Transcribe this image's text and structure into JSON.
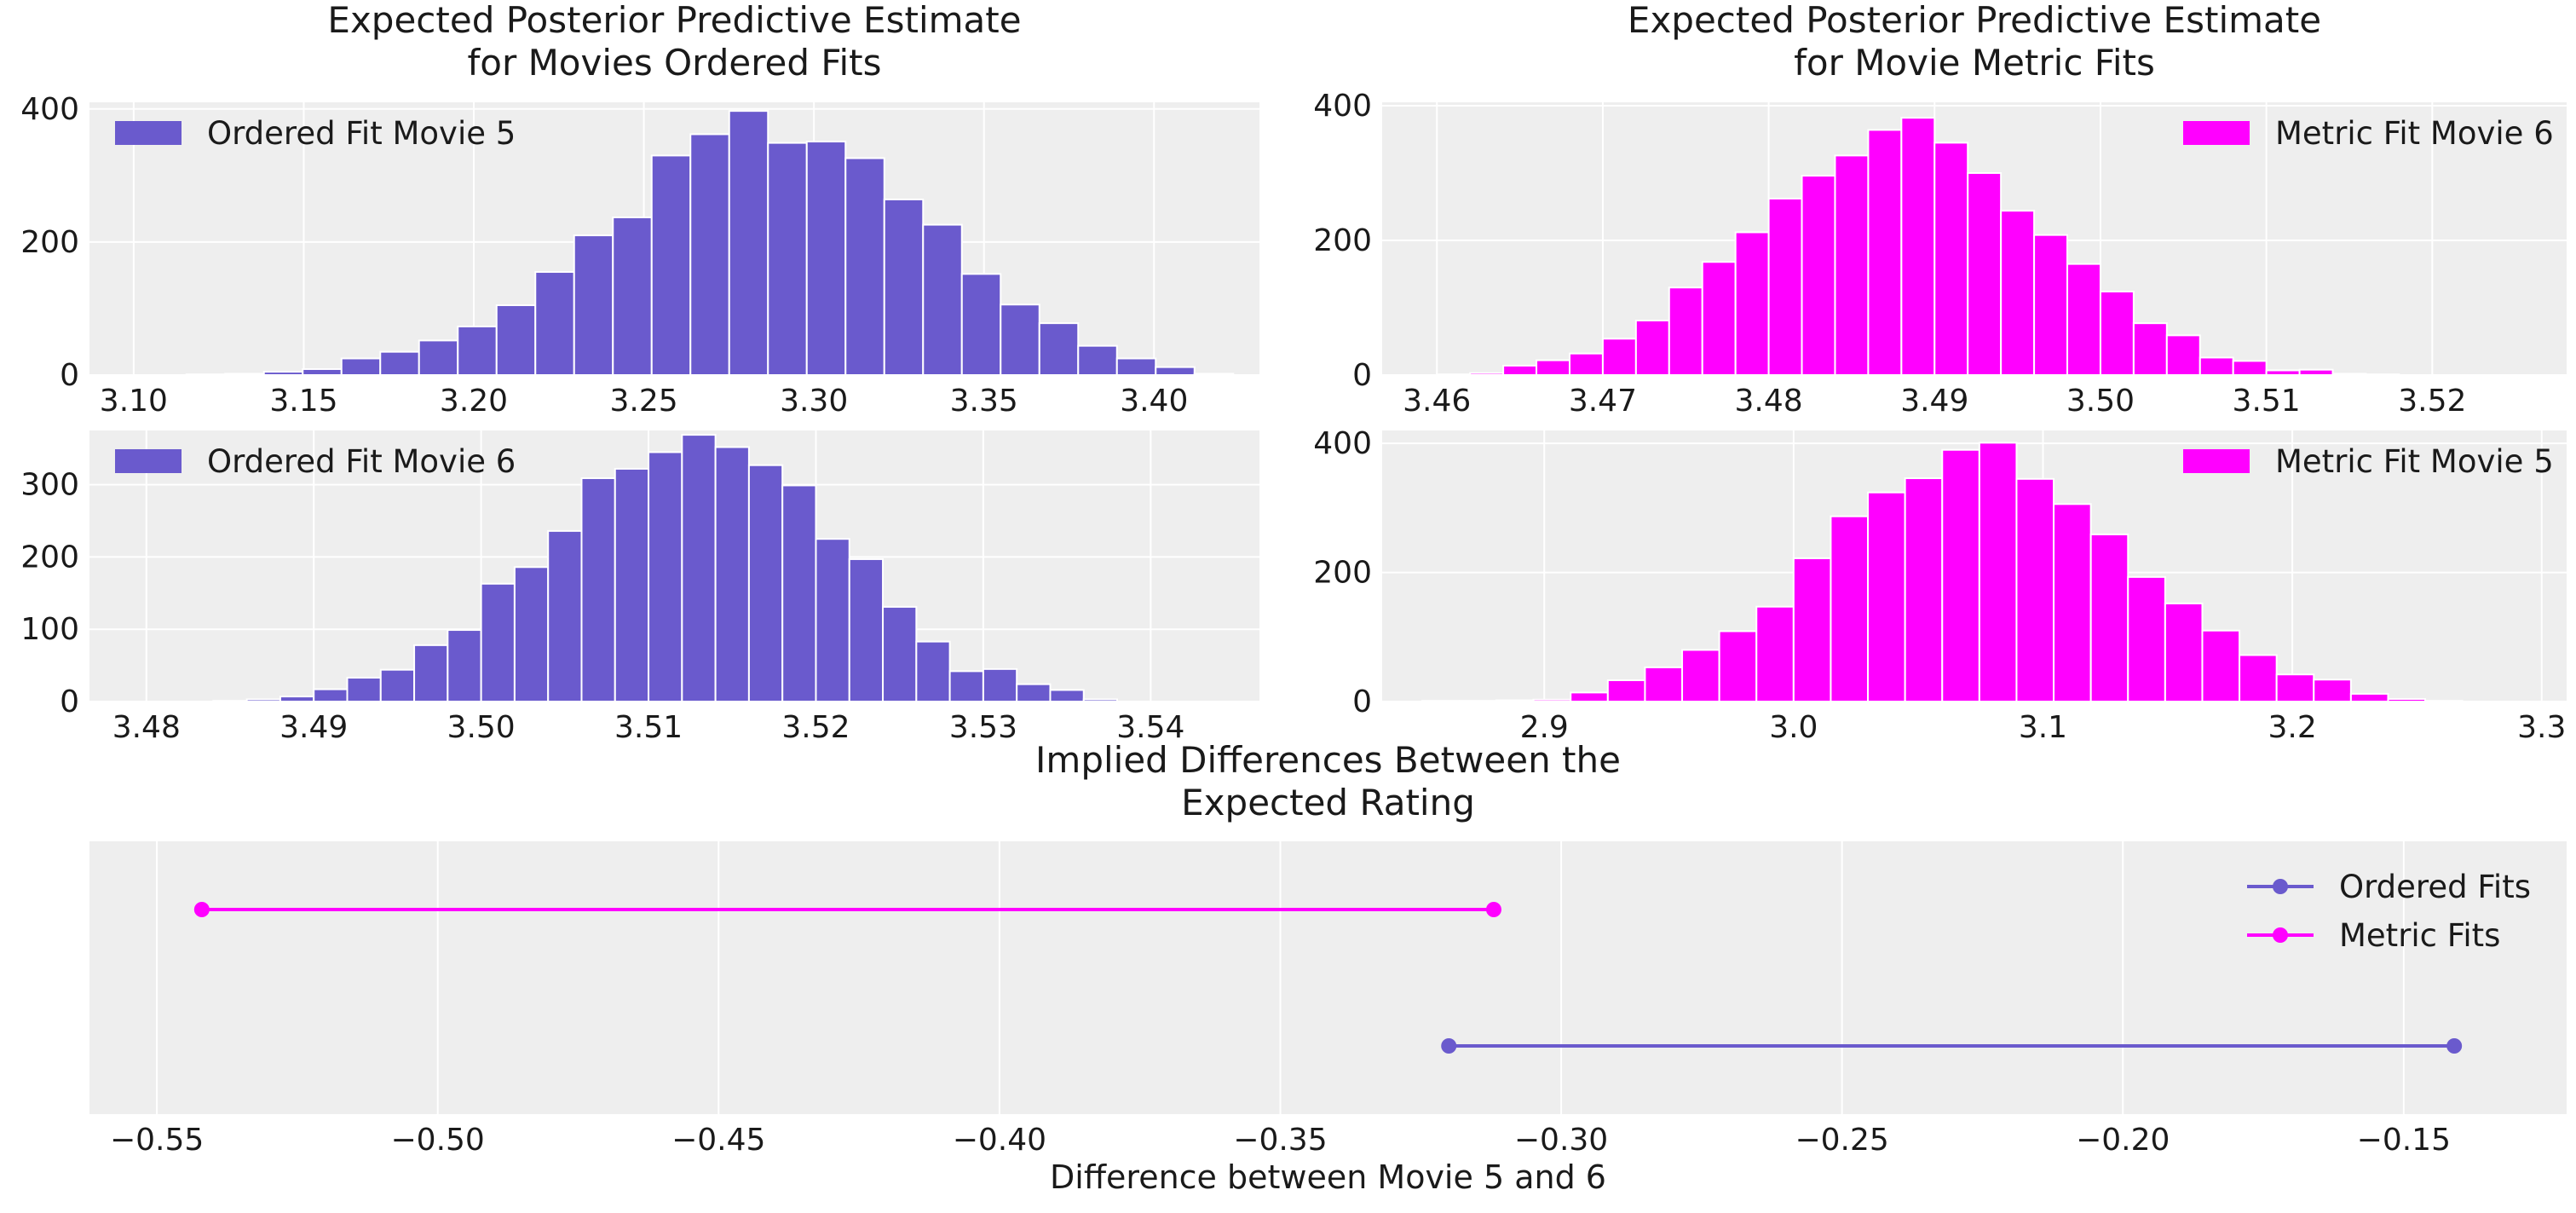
{
  "chart_data": [
    {
      "type": "bar",
      "panel": "top-left",
      "title": "Expected Posterior Predictive Estimate\nfor Movies Ordered Fits",
      "legend": [
        "Ordered Fit Movie 5"
      ],
      "legend_position": "top-left",
      "color": "#6a5acd",
      "bin_start": 3.0927,
      "bin_width": 0.0114,
      "values": [
        0,
        0,
        1,
        2,
        5,
        9,
        25,
        35,
        52,
        73,
        105,
        155,
        210,
        237,
        330,
        362,
        397,
        349,
        351,
        326,
        264,
        226,
        152,
        106,
        78,
        44,
        25,
        12,
        2,
        0
      ],
      "xlim": [
        3.087,
        3.431
      ],
      "ylim": [
        0,
        410
      ],
      "xticks": [
        3.1,
        3.15,
        3.2,
        3.25,
        3.3,
        3.35,
        3.4
      ],
      "xtick_labels": [
        "3.10",
        "3.15",
        "3.20",
        "3.25",
        "3.30",
        "3.35",
        "3.40"
      ],
      "yticks": [
        0,
        200,
        400
      ],
      "ytick_labels": [
        "0",
        "200",
        "400"
      ]
    },
    {
      "type": "bar",
      "panel": "top-right",
      "title": "Expected Posterior Predictive Estimate\nfor Movie Metric Fits",
      "legend": [
        "Metric Fit Movie 6"
      ],
      "legend_position": "top-right",
      "color": "#ff00ff",
      "bin_start": 3.46,
      "bin_width": 0.002,
      "values": [
        1,
        3,
        14,
        22,
        32,
        54,
        81,
        130,
        168,
        212,
        262,
        296,
        326,
        364,
        382,
        345,
        300,
        244,
        208,
        165,
        124,
        77,
        59,
        26,
        21,
        7,
        8,
        2,
        1,
        0,
        0,
        0
      ],
      "xlim": [
        3.4567,
        3.5281
      ],
      "ylim": [
        0,
        405
      ],
      "xticks": [
        3.46,
        3.47,
        3.48,
        3.49,
        3.5,
        3.51,
        3.52
      ],
      "xtick_labels": [
        "3.46",
        "3.47",
        "3.48",
        "3.49",
        "3.50",
        "3.51",
        "3.52"
      ],
      "yticks": [
        0,
        200,
        400
      ],
      "ytick_labels": [
        "0",
        "200",
        "400"
      ]
    },
    {
      "type": "bar",
      "panel": "middle-left",
      "title": "",
      "legend": [
        "Ordered Fit Movie 6"
      ],
      "legend_position": "top-left",
      "color": "#6a5acd",
      "bin_start": 3.48,
      "bin_width": 0.002,
      "values": [
        0,
        0,
        1,
        3,
        7,
        17,
        33,
        44,
        78,
        99,
        163,
        186,
        236,
        309,
        322,
        345,
        369,
        352,
        327,
        299,
        225,
        197,
        131,
        83,
        42,
        45,
        24,
        16,
        3,
        0,
        0,
        0
      ],
      "xlim": [
        3.4766,
        3.5465
      ],
      "ylim": [
        0,
        375
      ],
      "xticks": [
        3.48,
        3.49,
        3.5,
        3.51,
        3.52,
        3.53,
        3.54
      ],
      "xtick_labels": [
        "3.48",
        "3.49",
        "3.50",
        "3.51",
        "3.52",
        "3.53",
        "3.54"
      ],
      "yticks": [
        0,
        100,
        200,
        300
      ],
      "ytick_labels": [
        "0",
        "100",
        "200",
        "300"
      ]
    },
    {
      "type": "bar",
      "panel": "middle-right",
      "title": "",
      "legend": [
        "Metric Fit Movie 5"
      ],
      "legend_position": "top-right",
      "color": "#ff00ff",
      "bin_start": 2.851,
      "bin_width": 0.0149,
      "values": [
        1,
        1,
        2,
        3,
        14,
        33,
        53,
        80,
        109,
        147,
        222,
        287,
        324,
        346,
        390,
        401,
        345,
        306,
        259,
        193,
        152,
        110,
        72,
        42,
        34,
        12,
        4,
        1,
        0,
        0
      ],
      "xlim": [
        2.835,
        3.31
      ],
      "ylim": [
        0,
        420
      ],
      "xticks": [
        2.9,
        3.0,
        3.1,
        3.2,
        3.3
      ],
      "xtick_labels": [
        "2.9",
        "3.0",
        "3.1",
        "3.2",
        "3.3"
      ],
      "yticks": [
        0,
        200,
        400
      ],
      "ytick_labels": [
        "0",
        "200",
        "400"
      ]
    },
    {
      "type": "line",
      "panel": "bottom",
      "title": "Implied Differences Between the\nExpected Rating",
      "xlabel": "Difference between Movie 5 and 6",
      "legend_position": "top-right",
      "series": [
        {
          "name": "Ordered Fits",
          "color": "#6a5acd",
          "x": [
            -0.32,
            -0.141
          ],
          "y": [
            0,
            0
          ]
        },
        {
          "name": "Metric Fits",
          "color": "#ff00ff",
          "x": [
            -0.542,
            -0.312
          ],
          "y": [
            1,
            1
          ]
        }
      ],
      "xlim": [
        -0.562,
        -0.121
      ],
      "ylim": [
        -0.5,
        1.5
      ],
      "xticks": [
        -0.55,
        -0.5,
        -0.45,
        -0.4,
        -0.35,
        -0.3,
        -0.25,
        -0.2,
        -0.15
      ],
      "xtick_labels": [
        "−0.55",
        "−0.50",
        "−0.45",
        "−0.40",
        "−0.35",
        "−0.30",
        "−0.25",
        "−0.20",
        "−0.15"
      ],
      "grid": true
    }
  ]
}
